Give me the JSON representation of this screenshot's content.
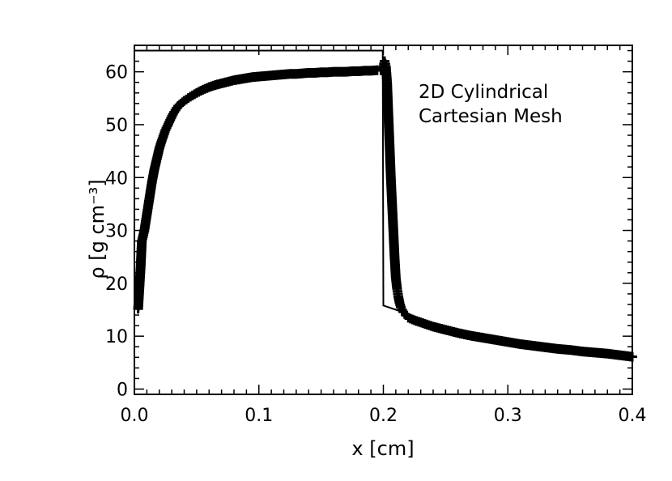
{
  "chart_data": {
    "type": "line",
    "xlabel": "x [cm]",
    "ylabel": "ρ [g cm⁻³]",
    "xlim": [
      0.0,
      0.4
    ],
    "ylim": [
      -1,
      65
    ],
    "xticks": [
      0.0,
      0.1,
      0.2,
      0.3,
      0.4
    ],
    "xtick_labels": [
      "0.0",
      "0.1",
      "0.2",
      "0.3",
      "0.4"
    ],
    "yticks": [
      0,
      10,
      20,
      30,
      40,
      50,
      60
    ],
    "ytick_labels": [
      "0",
      "10",
      "20",
      "30",
      "40",
      "50",
      "60"
    ],
    "grid": false,
    "annotation": [
      "2D Cylindrical",
      "Cartesian Mesh"
    ],
    "series": [
      {
        "style": "line",
        "color": "#000000",
        "x": [
          0.0,
          0.199,
          0.1995,
          0.2,
          0.21,
          0.22,
          0.25,
          0.3,
          0.35,
          0.4
        ],
        "y": [
          64,
          64,
          64,
          15.8,
          15.0,
          14.2,
          11.5,
          9.2,
          7.6,
          6.2
        ]
      },
      {
        "style": "markers",
        "marker": "plus",
        "color": "#000000",
        "x": [
          0.003,
          0.005,
          0.006,
          0.008,
          0.01,
          0.012,
          0.014,
          0.016,
          0.018,
          0.02,
          0.022,
          0.025,
          0.028,
          0.031,
          0.035,
          0.04,
          0.045,
          0.05,
          0.055,
          0.06,
          0.065,
          0.07,
          0.075,
          0.08,
          0.085,
          0.09,
          0.095,
          0.1,
          0.105,
          0.11,
          0.115,
          0.12,
          0.125,
          0.13,
          0.135,
          0.14,
          0.145,
          0.15,
          0.155,
          0.16,
          0.165,
          0.17,
          0.175,
          0.18,
          0.185,
          0.19,
          0.195,
          0.198,
          0.2,
          0.201,
          0.202,
          0.203,
          0.204,
          0.205,
          0.206,
          0.207,
          0.208,
          0.209,
          0.21,
          0.211,
          0.212,
          0.213,
          0.214,
          0.215,
          0.216,
          0.218,
          0.22,
          0.225,
          0.23,
          0.24,
          0.25,
          0.26,
          0.27,
          0.28,
          0.29,
          0.3,
          0.31,
          0.32,
          0.33,
          0.34,
          0.35,
          0.36,
          0.37,
          0.38,
          0.39,
          0.4
        ],
        "y": [
          15.2,
          23,
          28,
          30,
          33,
          36,
          39,
          41.5,
          43.5,
          45.5,
          47,
          49,
          50.5,
          52,
          53.5,
          54.5,
          55.3,
          56,
          56.6,
          57.1,
          57.5,
          57.8,
          58.1,
          58.4,
          58.6,
          58.8,
          59,
          59.1,
          59.2,
          59.3,
          59.4,
          59.5,
          59.6,
          59.6,
          59.7,
          59.8,
          59.8,
          59.9,
          59.9,
          60,
          60,
          60,
          60.1,
          60.1,
          60.2,
          60.2,
          60.3,
          60.3,
          61,
          62,
          61,
          58,
          52,
          46,
          40,
          35,
          30,
          25,
          21,
          19,
          17.5,
          16.3,
          15.5,
          15,
          14.6,
          14,
          13.5,
          13,
          12.6,
          11.8,
          11.2,
          10.6,
          10.1,
          9.7,
          9.3,
          8.9,
          8.5,
          8.2,
          7.9,
          7.6,
          7.4,
          7.1,
          6.9,
          6.7,
          6.4,
          6.1
        ]
      }
    ]
  }
}
